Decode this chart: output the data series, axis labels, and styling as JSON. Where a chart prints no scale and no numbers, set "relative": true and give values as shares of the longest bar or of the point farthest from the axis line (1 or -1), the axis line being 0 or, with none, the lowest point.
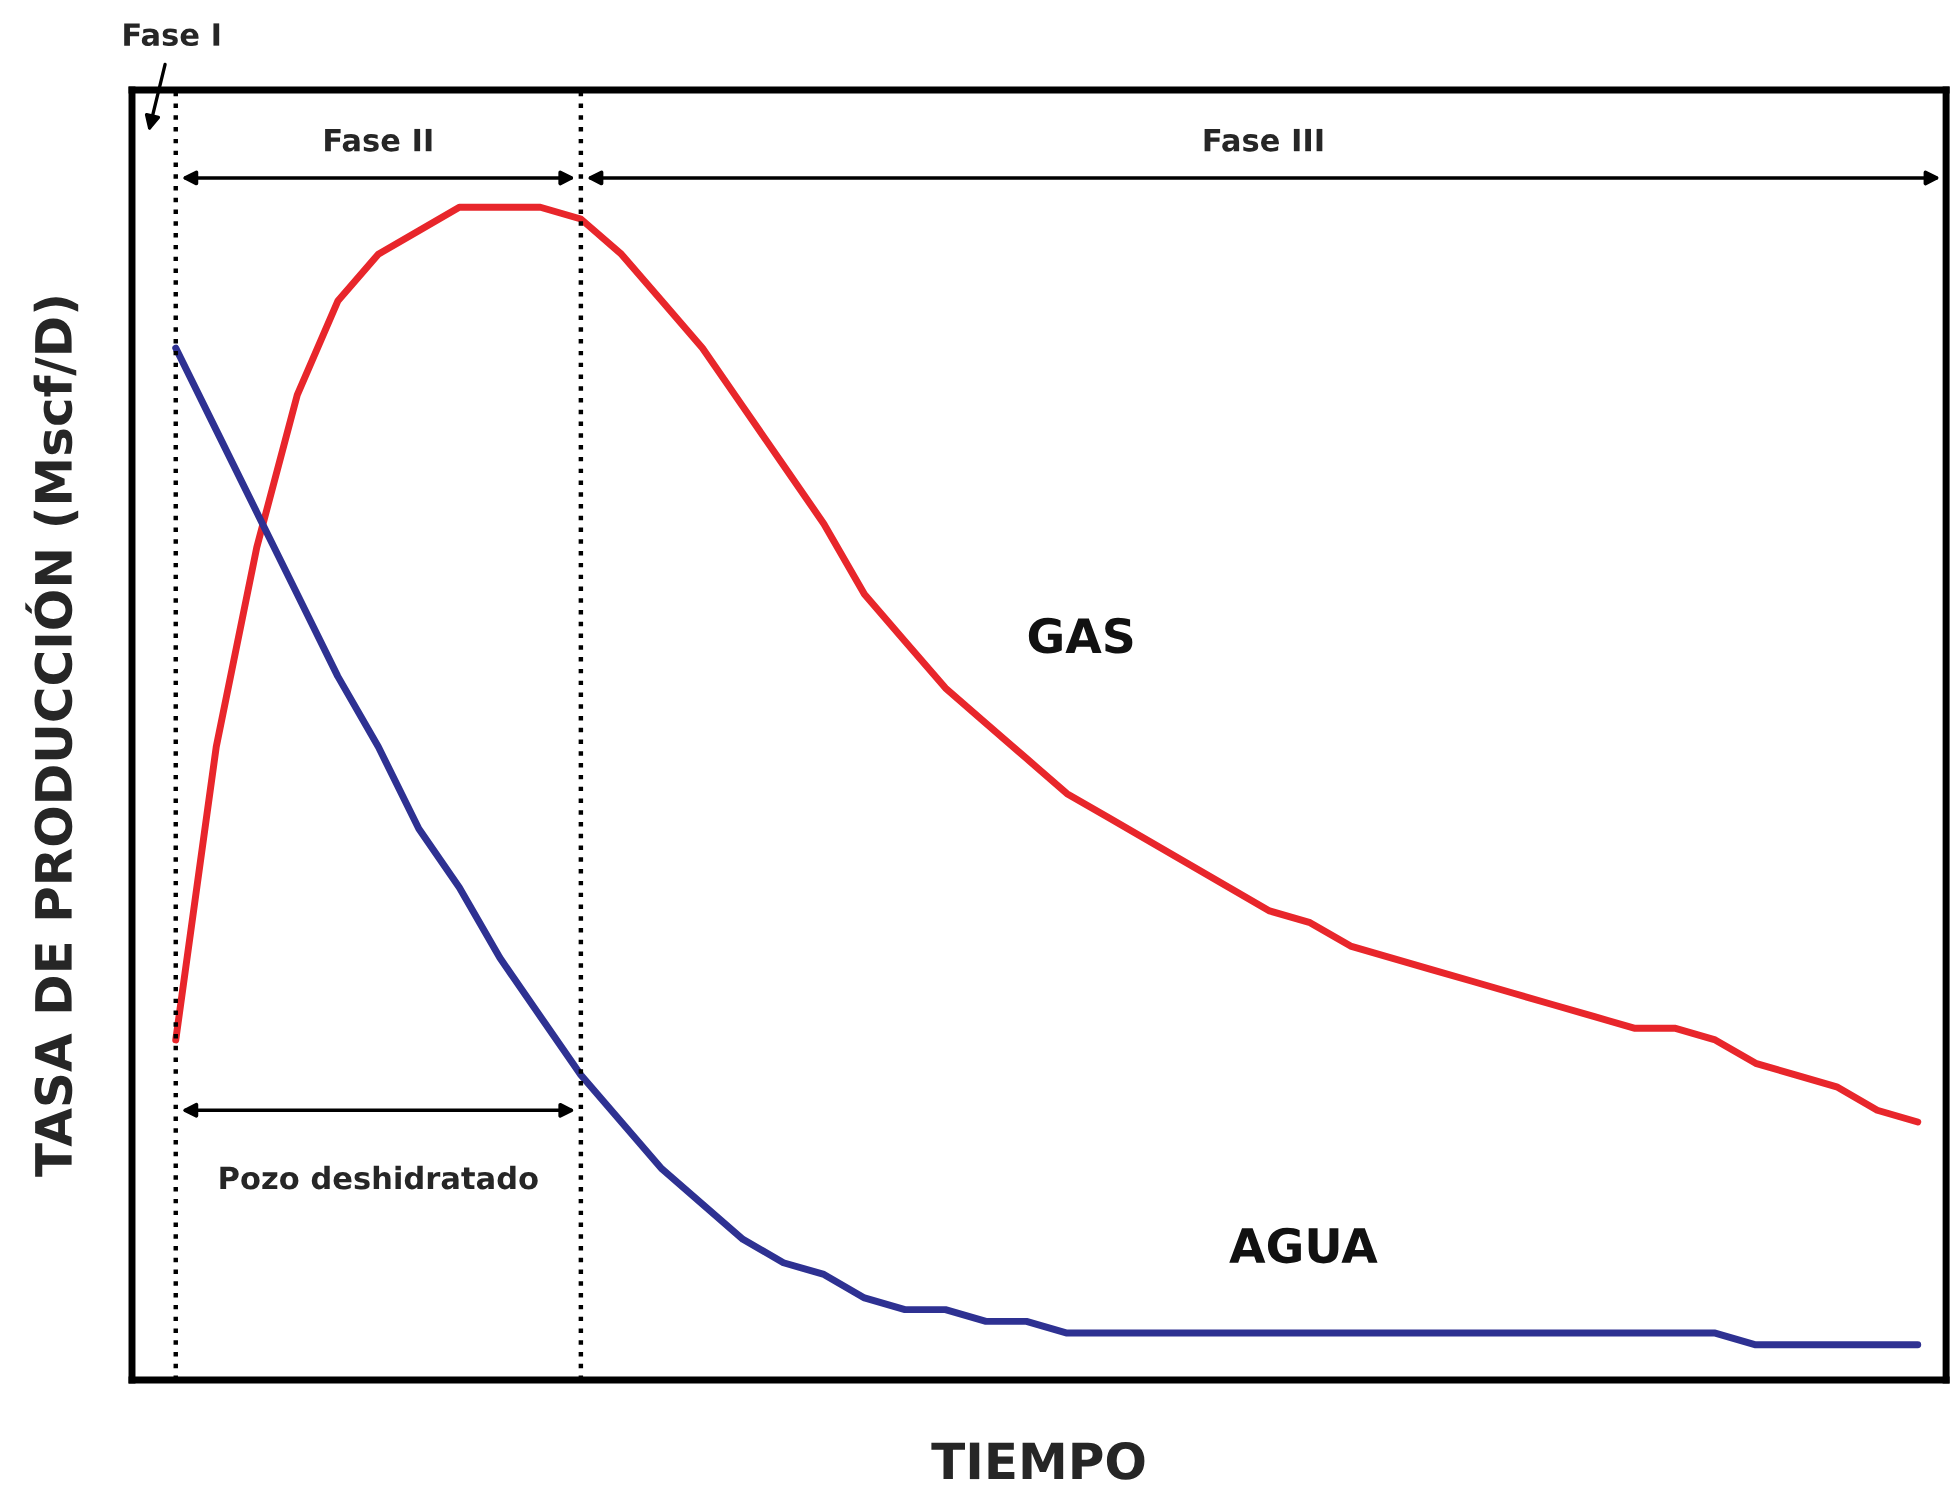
{
  "chart_data": {
    "type": "line",
    "relative": true,
    "xlabel": "TIEMPO",
    "ylabel": "TASA DE PRODUCCIÓN (Mscf/D)",
    "categories": [
      null,
      null,
      null,
      null,
      null,
      null,
      null,
      null,
      null,
      null,
      null,
      null,
      null,
      null,
      null,
      null,
      null,
      null,
      null,
      null,
      null,
      null,
      null,
      null,
      null,
      null,
      null,
      null,
      null,
      null,
      null,
      null,
      null,
      null,
      null,
      null,
      null,
      null,
      null,
      null,
      null,
      null,
      null,
      null
    ],
    "series": [
      {
        "name": "GAS",
        "color": "#e8262b",
        "values": [
          0.29,
          0.54,
          0.71,
          0.84,
          0.92,
          0.96,
          0.98,
          1.0,
          1.0,
          1.0,
          0.99,
          0.96,
          0.92,
          0.88,
          0.83,
          0.78,
          0.73,
          0.67,
          0.63,
          0.59,
          0.56,
          0.53,
          0.5,
          0.48,
          0.46,
          0.44,
          0.42,
          0.4,
          0.39,
          0.37,
          0.36,
          0.35,
          0.34,
          0.33,
          0.32,
          0.31,
          0.3,
          0.3,
          0.29,
          0.27,
          0.26,
          0.25,
          0.23,
          0.22
        ]
      },
      {
        "name": "AGUA",
        "color": "#2e3192",
        "values": [
          0.88,
          0.81,
          0.74,
          0.67,
          0.6,
          0.54,
          0.47,
          0.42,
          0.36,
          0.31,
          0.26,
          0.22,
          0.18,
          0.15,
          0.12,
          0.1,
          0.09,
          0.07,
          0.06,
          0.06,
          0.05,
          0.05,
          0.04,
          0.04,
          0.04,
          0.04,
          0.04,
          0.04,
          0.04,
          0.04,
          0.04,
          0.04,
          0.04,
          0.04,
          0.04,
          0.04,
          0.04,
          0.04,
          0.04,
          0.03,
          0.03,
          0.03,
          0.03,
          0.03
        ]
      }
    ],
    "annotations": [
      "Fase I",
      "Fase II",
      "Fase III",
      "Pozo deshidratado"
    ],
    "legend": false,
    "marker": "none",
    "line_style": "solid"
  }
}
